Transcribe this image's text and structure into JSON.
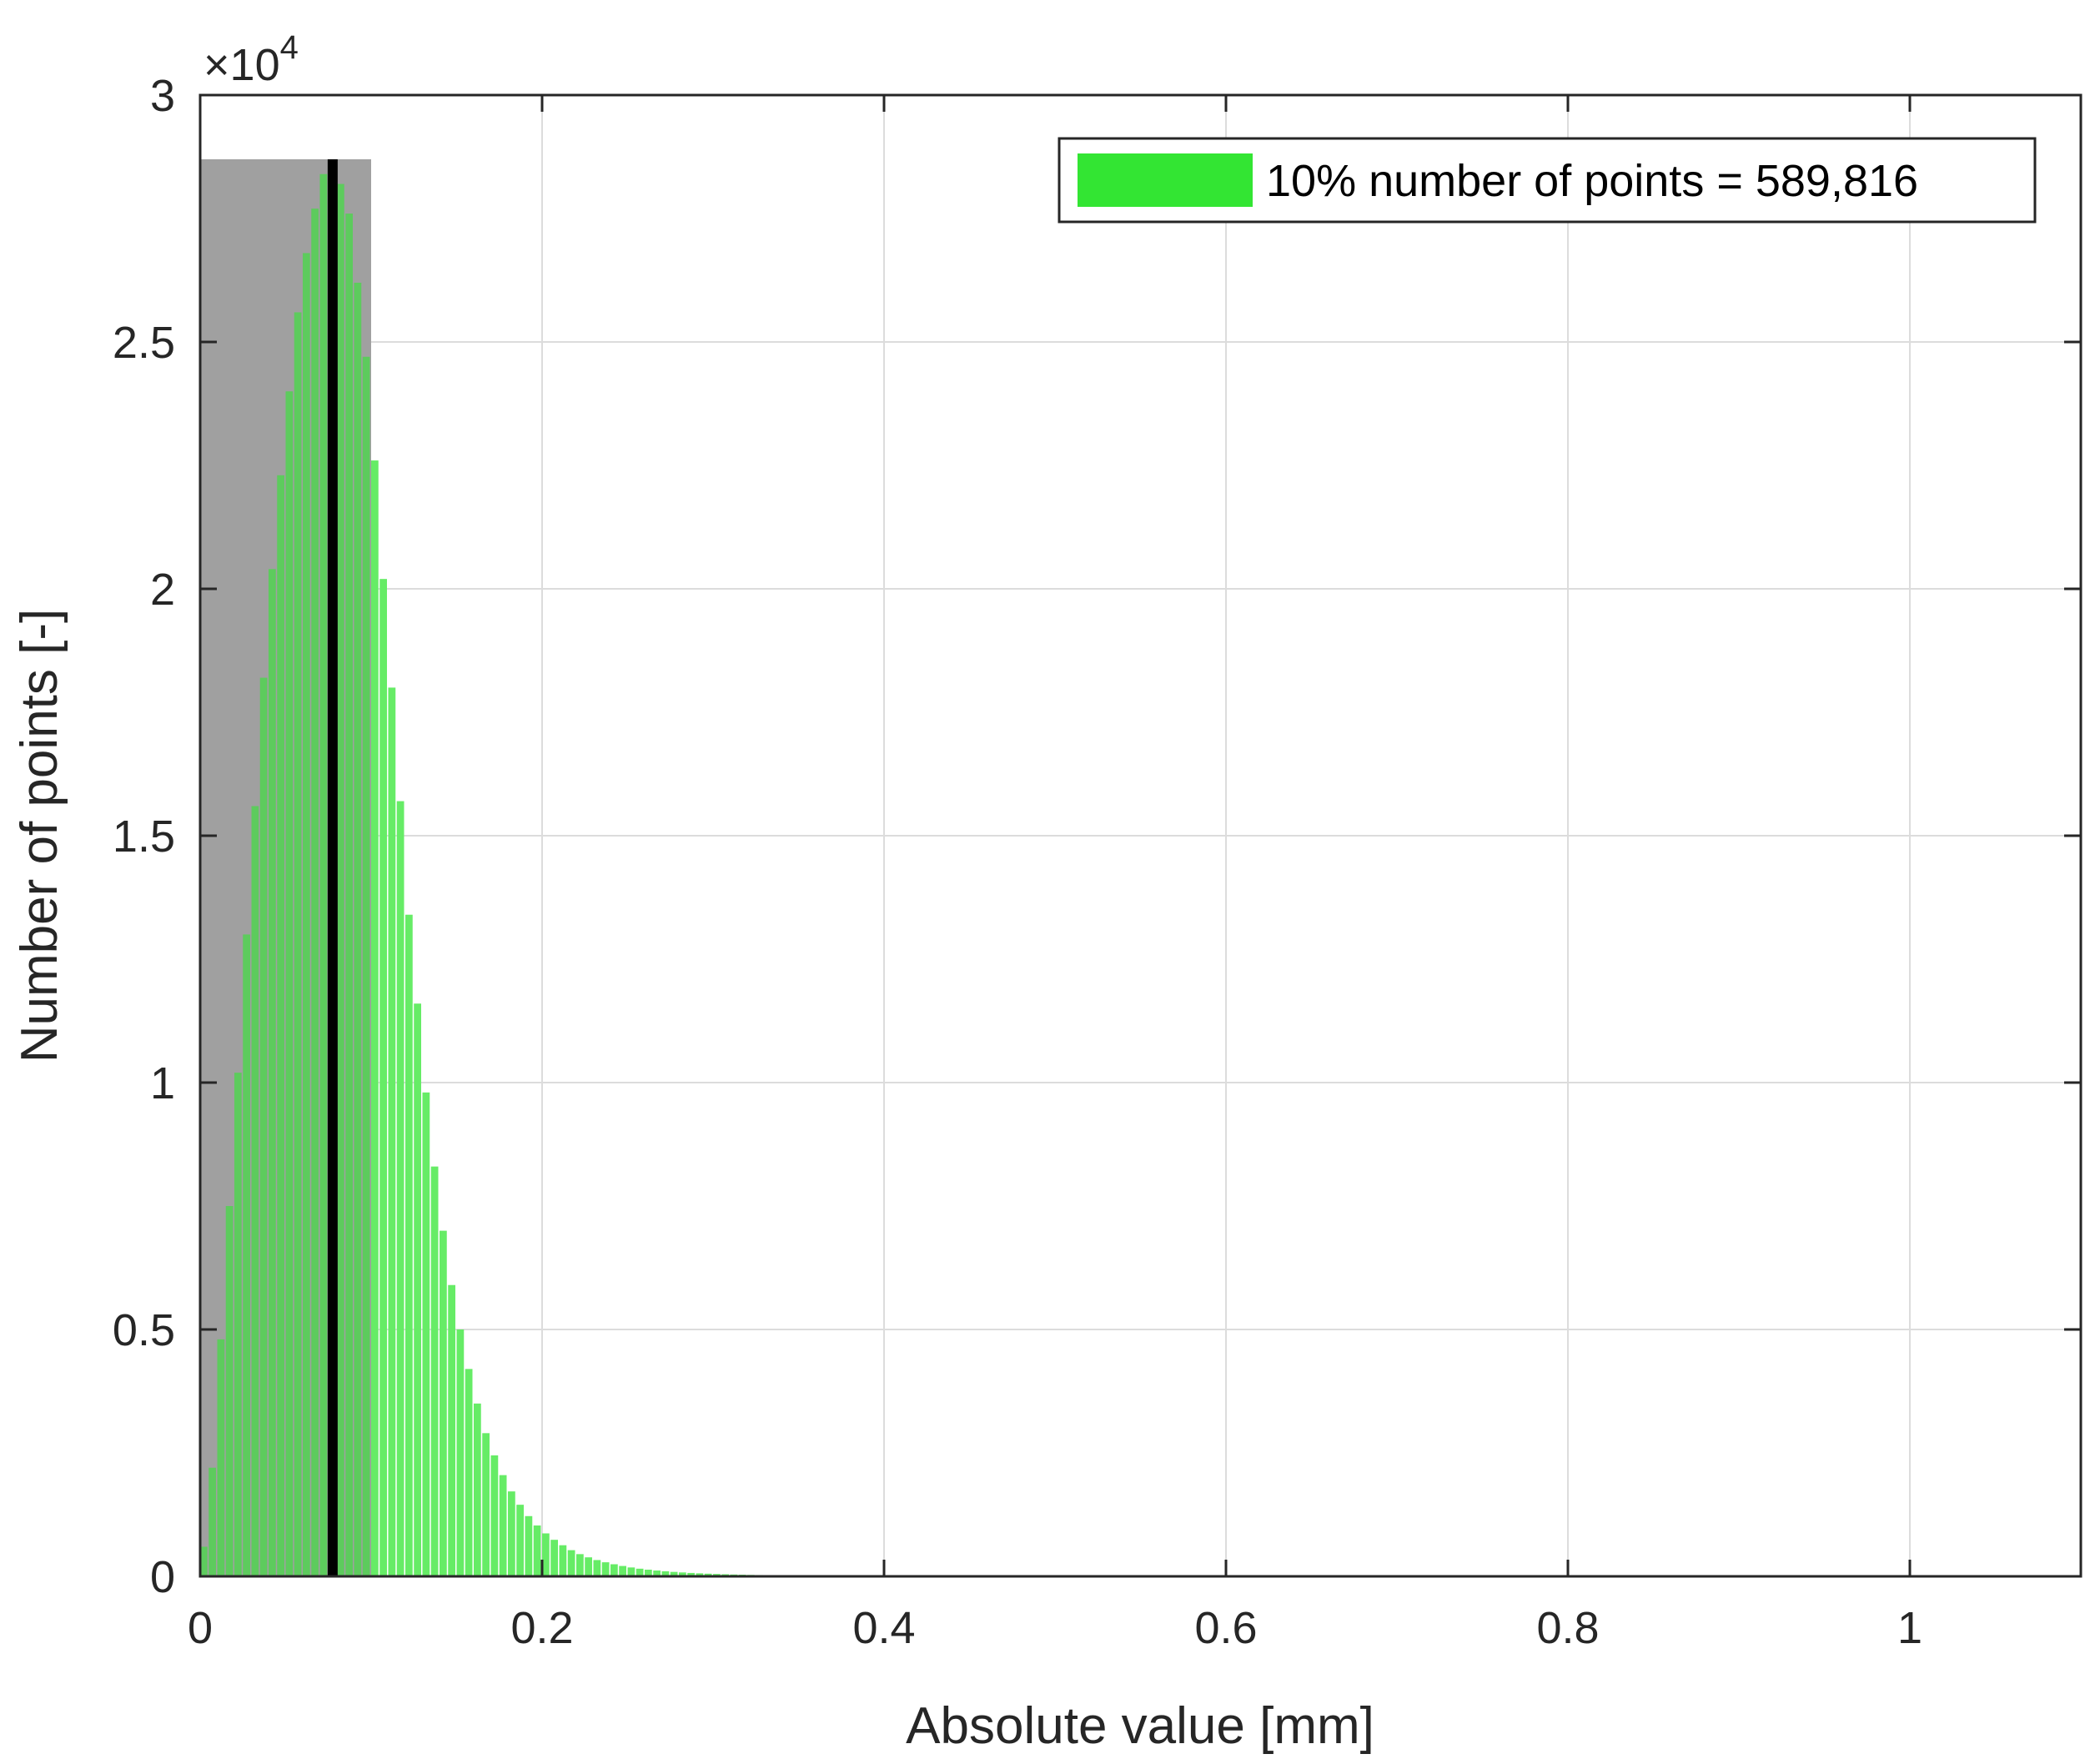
{
  "chart_data": {
    "type": "bar",
    "title": "",
    "xlabel": "Absolute value [mm]",
    "ylabel": "Number of points [-]",
    "y_exponent_label": "×10",
    "y_exponent_power": "4",
    "xlim": [
      0,
      1.1
    ],
    "ylim": [
      0,
      30000
    ],
    "x_ticks": [
      0,
      0.2,
      0.4,
      0.6,
      0.8,
      1
    ],
    "x_tick_labels": [
      "0",
      "0.2",
      "0.4",
      "0.6",
      "0.8",
      "1"
    ],
    "y_ticks": [
      0,
      5000,
      10000,
      15000,
      20000,
      25000,
      30000
    ],
    "y_tick_labels": [
      "0",
      "0.5",
      "1",
      "1.5",
      "2",
      "2.5",
      "3"
    ],
    "grid": true,
    "legend_position": "top-right",
    "legend": [
      {
        "label": "10% number of points = 589,816",
        "color": "#33e533"
      }
    ],
    "bar_color": "#33e533",
    "bar_color_light": "#66ec66",
    "shaded_region": {
      "x_start": 0,
      "x_end": 0.1,
      "y_top": 28700,
      "color": "#a0a0a0"
    },
    "vertical_line": {
      "x": 0.0775,
      "color": "#000000"
    },
    "histogram": {
      "bin_width": 0.005,
      "counts": [
        600,
        2200,
        4800,
        7500,
        10200,
        13000,
        15600,
        18200,
        20400,
        22300,
        24000,
        25600,
        26800,
        27700,
        28400,
        28650,
        28200,
        27600,
        26200,
        24700,
        22600,
        20200,
        18000,
        15700,
        13400,
        11600,
        9800,
        8300,
        7000,
        5900,
        5000,
        4200,
        3500,
        2900,
        2450,
        2050,
        1720,
        1450,
        1220,
        1030,
        870,
        740,
        630,
        530,
        450,
        385,
        330,
        285,
        245,
        210,
        180,
        155,
        135,
        118,
        103,
        90,
        79,
        69,
        61,
        54,
        48,
        42,
        37,
        33,
        29,
        26,
        23,
        20,
        18,
        16,
        14,
        12,
        11,
        10,
        9,
        8,
        7,
        6,
        5,
        5,
        4,
        4,
        3,
        3,
        3,
        2,
        2,
        2,
        2,
        1,
        1,
        1,
        1,
        1,
        1,
        1,
        1,
        1,
        1,
        1
      ]
    }
  }
}
